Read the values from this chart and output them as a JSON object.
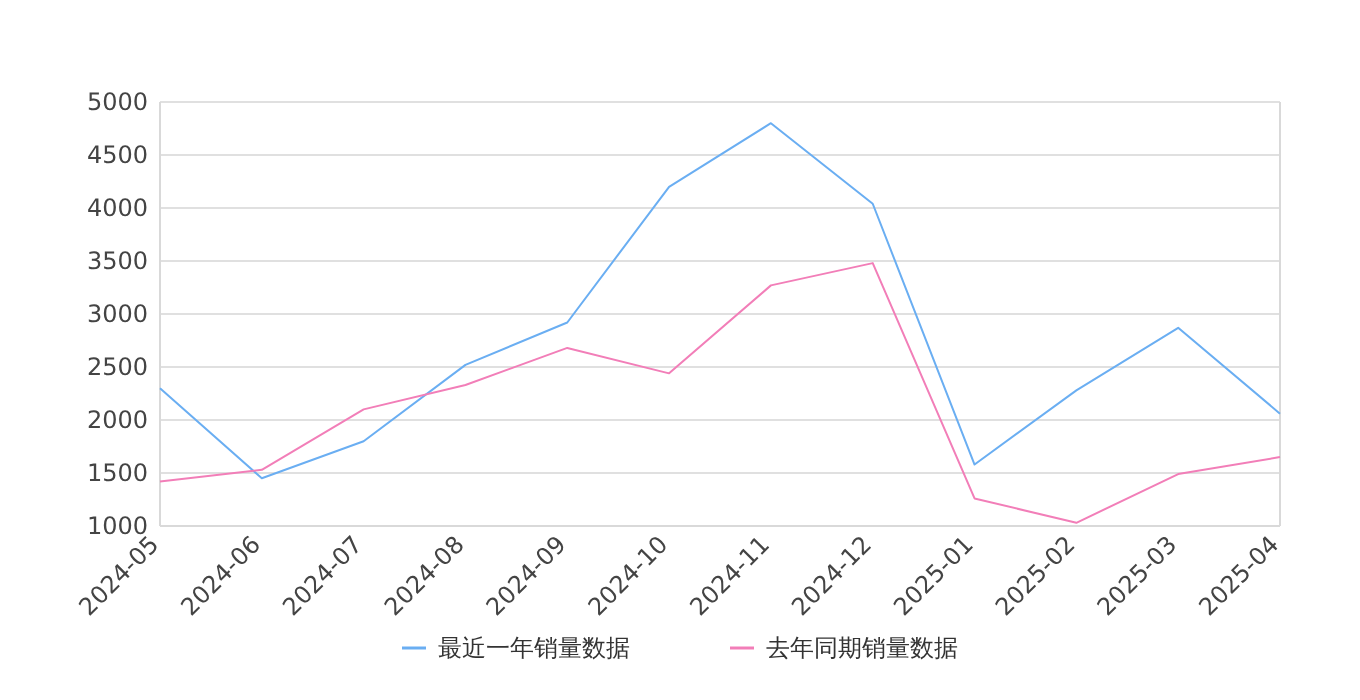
{
  "chart_data": {
    "type": "line",
    "categories": [
      "2024-05",
      "2024-06",
      "2024-07",
      "2024-08",
      "2024-09",
      "2024-10",
      "2024-11",
      "2024-12",
      "2025-01",
      "2025-02",
      "2025-03",
      "2025-04"
    ],
    "series": [
      {
        "name": "最近一年销量数据",
        "color": "#6aaef2",
        "values": [
          2300,
          1450,
          1800,
          2520,
          2920,
          4200,
          4800,
          4040,
          1580,
          2280,
          2870,
          2060
        ]
      },
      {
        "name": "去年同期销量数据",
        "color": "#f27eb8",
        "values": [
          1420,
          1530,
          2100,
          2330,
          2680,
          2440,
          3270,
          3480,
          1260,
          1030,
          1490,
          1650
        ]
      }
    ],
    "ylim": [
      1000,
      5000
    ],
    "yticks": [
      1000,
      1500,
      2000,
      2500,
      3000,
      3500,
      4000,
      4500,
      5000
    ],
    "grid": "y",
    "legend": "bottom"
  }
}
